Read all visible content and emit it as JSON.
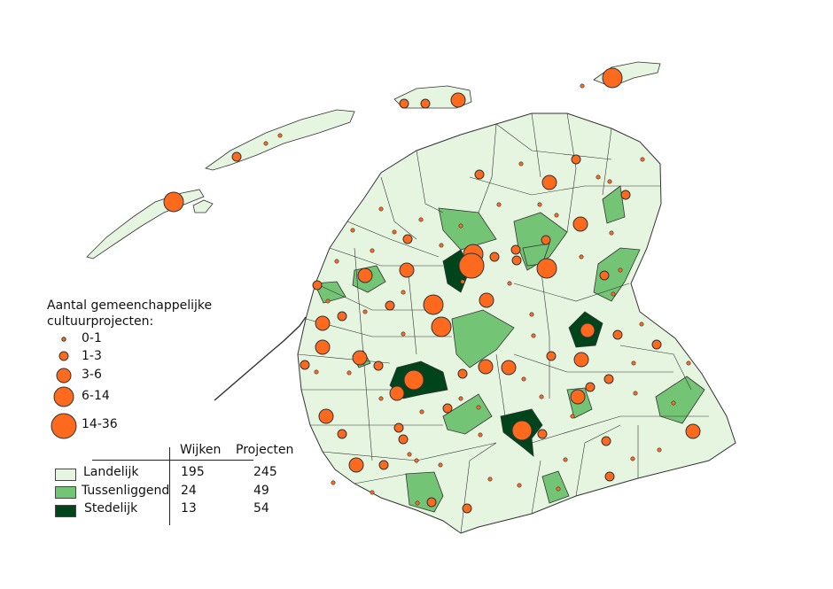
{
  "colors": {
    "landelijk": "#e5f5e0",
    "tussenliggend": "#74c476",
    "stedelijk": "#00441b",
    "marker": "#fd6a1e",
    "border": "#333333"
  },
  "legend": {
    "title_line1": "Aantal gemeenchappelijke",
    "title_line2": "cultuurprojecten:",
    "size_classes": [
      "0-1",
      "1-3",
      "3-6",
      "6-14",
      "14-36"
    ],
    "table": {
      "headers": [
        "Wijken",
        "Projecten"
      ],
      "rows": [
        {
          "label": "Landelijk",
          "wijken": "195",
          "projecten": "245"
        },
        {
          "label": "Tussenliggend",
          "wijken": "24",
          "projecten": "49"
        },
        {
          "label": "Stedelijk",
          "wijken": "13",
          "projecten": "54"
        }
      ]
    }
  }
}
